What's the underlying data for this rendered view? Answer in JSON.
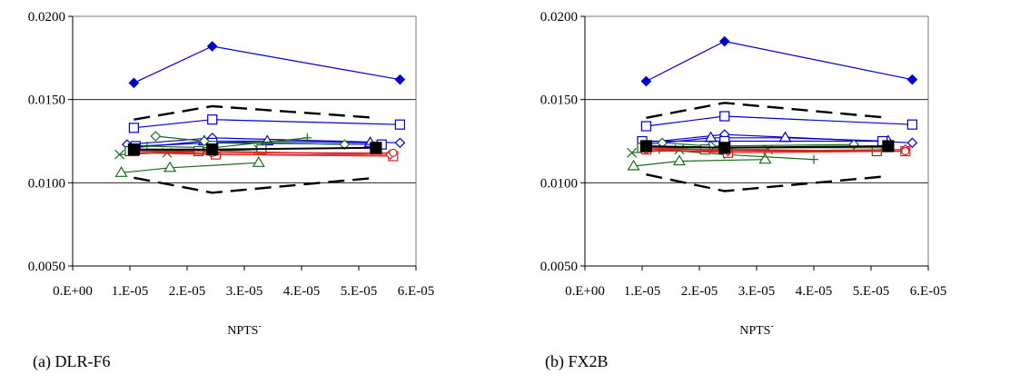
{
  "chart_data": [
    {
      "type": "line",
      "caption": "(a) DLR-F6",
      "xlabel": "NPTS",
      "xlabel_superscript": "-",
      "ylabel": "",
      "xlim": [
        0,
        6e-05
      ],
      "ylim": [
        0.005,
        0.02
      ],
      "xticks": [
        "0.E+00",
        "1.E-05",
        "2.E-05",
        "3.E-05",
        "4.E-05",
        "5.E-05",
        "6.E-05"
      ],
      "yticks": [
        "0.0050",
        "0.0100",
        "0.0150",
        "0.0200"
      ],
      "grid_y": [
        0.01,
        0.015
      ],
      "series": [
        {
          "color": "#0000cc",
          "marker": "diamond-filled",
          "dash": "",
          "x": [
            1.07e-05,
            2.44e-05,
            5.72e-05
          ],
          "y": [
            0.016,
            0.0182,
            0.0162
          ]
        },
        {
          "color": "#000000",
          "marker": "none",
          "dash": "long",
          "x": [
            1.07e-05,
            2.44e-05,
            5.3e-05
          ],
          "y": [
            0.0138,
            0.0146,
            0.0139
          ]
        },
        {
          "color": "#000000",
          "marker": "none",
          "dash": "long",
          "x": [
            1.07e-05,
            2.44e-05,
            5.3e-05
          ],
          "y": [
            0.0103,
            0.0094,
            0.0103
          ]
        },
        {
          "color": "#0000cc",
          "marker": "square",
          "dash": "",
          "x": [
            1.07e-05,
            2.44e-05,
            5.72e-05
          ],
          "y": [
            0.0133,
            0.0138,
            0.0135
          ]
        },
        {
          "color": "#0000cc",
          "marker": "diamond",
          "dash": "",
          "x": [
            9.5e-06,
            2.44e-05,
            5.72e-05
          ],
          "y": [
            0.0123,
            0.0127,
            0.0124
          ]
        },
        {
          "color": "#0000cc",
          "marker": "triangle",
          "dash": "",
          "x": [
            1.05e-05,
            2.3e-05,
            3.4e-05,
            5.2e-05
          ],
          "y": [
            0.0121,
            0.0125,
            0.0125,
            0.0124
          ]
        },
        {
          "color": "#0000cc",
          "marker": "square",
          "dash": "",
          "x": [
            1.1e-05,
            2.44e-05,
            5.4e-05
          ],
          "y": [
            0.0122,
            0.0124,
            0.0123
          ]
        },
        {
          "color": "#1a6b1a",
          "marker": "diamond",
          "dash": "",
          "x": [
            1.45e-05,
            2.3e-05,
            4.75e-05
          ],
          "y": [
            0.0128,
            0.0125,
            0.0123
          ]
        },
        {
          "color": "#1a6b1a",
          "marker": "triangle",
          "dash": "",
          "x": [
            8.5e-06,
            1.7e-05,
            3.25e-05
          ],
          "y": [
            0.0106,
            0.0109,
            0.0112
          ]
        },
        {
          "color": "#1a6b1a",
          "marker": "plus",
          "dash": "",
          "x": [
            1.3e-05,
            2.44e-05,
            4.1e-05
          ],
          "y": [
            0.0122,
            0.0121,
            0.0127
          ]
        },
        {
          "color": "#1a6b1a",
          "marker": "x",
          "dash": "",
          "x": [
            8.2e-06,
            1.65e-05,
            3.25e-05
          ],
          "y": [
            0.0117,
            0.0118,
            0.012
          ]
        },
        {
          "color": "#1a6b1a",
          "marker": "square",
          "dash": "",
          "x": [
            1e-05,
            2.2e-05,
            3.3e-05
          ],
          "y": [
            0.0119,
            0.0119,
            0.012
          ]
        },
        {
          "color": "#1a6b1a",
          "marker": "circle",
          "dash": "",
          "x": [
            1.1e-05,
            2.44e-05,
            5.3e-05
          ],
          "y": [
            0.012,
            0.012,
            0.0121
          ]
        },
        {
          "color": "#dd2222",
          "marker": "square",
          "dash": "",
          "x": [
            1.07e-05,
            2.5e-05,
            5.6e-05
          ],
          "y": [
            0.0119,
            0.0117,
            0.0116
          ]
        },
        {
          "color": "#dd2222",
          "marker": "diamond",
          "dash": "",
          "x": [
            1.1e-05,
            2.5e-05,
            5.55e-05
          ],
          "y": [
            0.012,
            0.0119,
            0.0117
          ]
        },
        {
          "color": "#dd2222",
          "marker": "circle",
          "dash": "",
          "x": [
            1.07e-05,
            2.44e-05,
            5.6e-05
          ],
          "y": [
            0.0119,
            0.0118,
            0.0118
          ]
        },
        {
          "color": "#dd2222",
          "marker": "none",
          "dash": "",
          "x": [
            1.07e-05,
            2.44e-05,
            5.5e-05
          ],
          "y": [
            0.0118,
            0.0117,
            0.0117
          ]
        },
        {
          "color": "#000000",
          "marker": "square-filled",
          "dash": "",
          "x": [
            1.07e-05,
            2.44e-05,
            5.3e-05
          ],
          "y": [
            0.012,
            0.012,
            0.0121
          ]
        }
      ]
    },
    {
      "type": "line",
      "caption": "(b) FX2B",
      "xlabel": "NPTS",
      "xlabel_superscript": "-",
      "ylabel": "",
      "xlim": [
        0,
        6e-05
      ],
      "ylim": [
        0.005,
        0.02
      ],
      "xticks": [
        "0.E+00",
        "1.E-05",
        "2.E-05",
        "3.E-05",
        "4.E-05",
        "5.E-05",
        "6.E-05"
      ],
      "yticks": [
        "0.0050",
        "0.0100",
        "0.0150",
        "0.0200"
      ],
      "grid_y": [
        0.01,
        0.015
      ],
      "series": [
        {
          "color": "#0000cc",
          "marker": "diamond-filled",
          "dash": "",
          "x": [
            1.07e-05,
            2.44e-05,
            5.72e-05
          ],
          "y": [
            0.0161,
            0.0185,
            0.0162
          ]
        },
        {
          "color": "#000000",
          "marker": "none",
          "dash": "long",
          "x": [
            1.07e-05,
            2.44e-05,
            5.3e-05
          ],
          "y": [
            0.0139,
            0.0148,
            0.0139
          ]
        },
        {
          "color": "#000000",
          "marker": "none",
          "dash": "long",
          "x": [
            1.07e-05,
            2.44e-05,
            5.3e-05
          ],
          "y": [
            0.0105,
            0.0095,
            0.0104
          ]
        },
        {
          "color": "#0000cc",
          "marker": "square",
          "dash": "",
          "x": [
            1.07e-05,
            2.44e-05,
            5.72e-05
          ],
          "y": [
            0.0134,
            0.014,
            0.0135
          ]
        },
        {
          "color": "#0000cc",
          "marker": "diamond",
          "dash": "",
          "x": [
            1e-05,
            2.44e-05,
            5.72e-05
          ],
          "y": [
            0.0124,
            0.0129,
            0.0124
          ]
        },
        {
          "color": "#0000cc",
          "marker": "triangle",
          "dash": "",
          "x": [
            1.05e-05,
            2.2e-05,
            3.5e-05,
            5.3e-05
          ],
          "y": [
            0.0123,
            0.0127,
            0.0127,
            0.0125
          ]
        },
        {
          "color": "#0000cc",
          "marker": "square",
          "dash": "",
          "x": [
            1e-05,
            2.44e-05,
            5.2e-05
          ],
          "y": [
            0.0125,
            0.0125,
            0.0125
          ]
        },
        {
          "color": "#1a6b1a",
          "marker": "diamond",
          "dash": "",
          "x": [
            1.35e-05,
            2.2e-05,
            4.7e-05
          ],
          "y": [
            0.0124,
            0.0122,
            0.0123
          ]
        },
        {
          "color": "#1a6b1a",
          "marker": "triangle",
          "dash": "",
          "x": [
            8.5e-06,
            1.65e-05,
            3.15e-05
          ],
          "y": [
            0.011,
            0.0113,
            0.0114
          ]
        },
        {
          "color": "#1a6b1a",
          "marker": "plus",
          "dash": "",
          "x": [
            1.3e-05,
            2.44e-05,
            4e-05
          ],
          "y": [
            0.012,
            0.0117,
            0.0114
          ]
        },
        {
          "color": "#1a6b1a",
          "marker": "x",
          "dash": "",
          "x": [
            8.2e-06,
            1.65e-05,
            3.2e-05
          ],
          "y": [
            0.0118,
            0.012,
            0.012
          ]
        },
        {
          "color": "#1a6b1a",
          "marker": "square",
          "dash": "",
          "x": [
            1e-05,
            2.1e-05,
            5.1e-05
          ],
          "y": [
            0.0121,
            0.012,
            0.0119
          ]
        },
        {
          "color": "#1a6b1a",
          "marker": "circle",
          "dash": "",
          "x": [
            1.1e-05,
            2.44e-05,
            5.3e-05
          ],
          "y": [
            0.0121,
            0.0121,
            0.0121
          ]
        },
        {
          "color": "#dd2222",
          "marker": "square",
          "dash": "",
          "x": [
            1.07e-05,
            2.5e-05,
            5.6e-05
          ],
          "y": [
            0.012,
            0.0118,
            0.0119
          ]
        },
        {
          "color": "#dd2222",
          "marker": "diamond",
          "dash": "",
          "x": [
            1.1e-05,
            2.5e-05,
            5.6e-05
          ],
          "y": [
            0.0121,
            0.0119,
            0.012
          ]
        },
        {
          "color": "#dd2222",
          "marker": "circle",
          "dash": "",
          "x": [
            1.07e-05,
            2.44e-05,
            5.6e-05
          ],
          "y": [
            0.012,
            0.012,
            0.0119
          ]
        },
        {
          "color": "#dd2222",
          "marker": "none",
          "dash": "",
          "x": [
            1.07e-05,
            2.44e-05,
            5.5e-05
          ],
          "y": [
            0.0119,
            0.0119,
            0.0119
          ]
        },
        {
          "color": "#000000",
          "marker": "square-filled",
          "dash": "",
          "x": [
            1.07e-05,
            2.44e-05,
            5.3e-05
          ],
          "y": [
            0.0122,
            0.0121,
            0.0122
          ]
        }
      ]
    }
  ]
}
